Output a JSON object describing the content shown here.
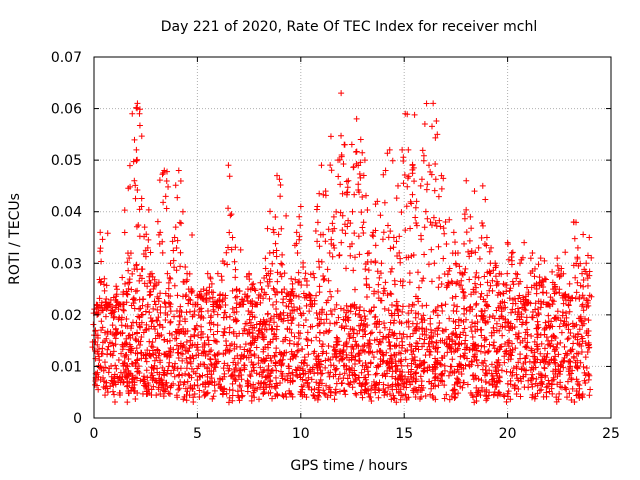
{
  "chart_data": {
    "type": "scatter",
    "title": "Day 221 of 2020, Rate Of TEC Index for receiver mchl",
    "xlabel": "GPS time / hours",
    "ylabel": "ROTI / TECUs",
    "xlim": [
      0,
      25
    ],
    "ylim": [
      0,
      0.07
    ],
    "xticks": [
      0,
      5,
      10,
      15,
      20,
      25
    ],
    "xtick_labels": [
      "0",
      "5",
      "10",
      "15",
      "20",
      "25"
    ],
    "yticks": [
      0,
      0.01,
      0.02,
      0.03,
      0.04,
      0.05,
      0.06,
      0.07
    ],
    "ytick_labels": [
      "0",
      "0.01",
      "0.02",
      "0.03",
      "0.04",
      "0.05",
      "0.06",
      "0.07"
    ],
    "grid": true,
    "marker": "plus",
    "series": [
      {
        "name": "ROTI",
        "color": "#ff0000",
        "x": [
          0.05,
          0.15,
          0.3,
          0.5,
          0.7,
          0.9,
          1.1,
          1.3,
          1.5,
          1.7,
          1.85,
          1.95,
          2.05,
          2.1,
          2.2,
          2.3,
          2.45,
          2.6,
          2.8,
          3.0,
          3.2,
          3.4,
          3.55,
          3.7,
          3.9,
          4.1,
          4.3,
          4.5,
          4.7,
          4.9,
          5.1,
          5.3,
          5.5,
          5.7,
          5.9,
          6.1,
          6.3,
          6.5,
          6.7,
          6.9,
          7.1,
          7.3,
          7.5,
          7.7,
          7.9,
          8.1,
          8.3,
          8.5,
          8.7,
          8.85,
          9.0,
          9.2,
          9.4,
          9.6,
          9.8,
          10.0,
          10.2,
          10.4,
          10.6,
          10.8,
          11.0,
          11.2,
          11.4,
          11.6,
          11.8,
          11.95,
          12.1,
          12.3,
          12.5,
          12.7,
          12.9,
          13.1,
          13.3,
          13.5,
          13.7,
          13.9,
          14.1,
          14.3,
          14.5,
          14.7,
          14.9,
          15.05,
          15.2,
          15.4,
          15.6,
          15.8,
          16.0,
          16.2,
          16.4,
          16.6,
          16.8,
          17.0,
          17.2,
          17.4,
          17.6,
          17.8,
          18.0,
          18.2,
          18.4,
          18.6,
          18.8,
          19.0,
          19.2,
          19.4,
          19.6,
          19.8,
          20.0,
          20.2,
          20.4,
          20.6,
          20.8,
          21.0,
          21.2,
          21.4,
          21.6,
          21.8,
          22.0,
          22.2,
          22.4,
          22.6,
          22.8,
          23.0,
          23.2,
          23.4,
          23.6,
          23.8,
          23.95
        ],
        "y": [
          0.013,
          0.02,
          0.036,
          0.027,
          0.022,
          0.018,
          0.024,
          0.022,
          0.026,
          0.031,
          0.059,
          0.046,
          0.052,
          0.061,
          0.059,
          0.041,
          0.037,
          0.033,
          0.028,
          0.026,
          0.036,
          0.048,
          0.028,
          0.03,
          0.035,
          0.048,
          0.04,
          0.028,
          0.025,
          0.022,
          0.024,
          0.025,
          0.028,
          0.026,
          0.022,
          0.024,
          0.03,
          0.049,
          0.035,
          0.025,
          0.022,
          0.024,
          0.028,
          0.026,
          0.022,
          0.025,
          0.029,
          0.032,
          0.036,
          0.047,
          0.043,
          0.025,
          0.024,
          0.026,
          0.036,
          0.041,
          0.027,
          0.024,
          0.028,
          0.041,
          0.049,
          0.044,
          0.032,
          0.039,
          0.05,
          0.063,
          0.053,
          0.046,
          0.04,
          0.058,
          0.054,
          0.05,
          0.032,
          0.036,
          0.042,
          0.03,
          0.048,
          0.052,
          0.035,
          0.045,
          0.052,
          0.059,
          0.052,
          0.049,
          0.042,
          0.045,
          0.057,
          0.049,
          0.061,
          0.055,
          0.047,
          0.038,
          0.029,
          0.036,
          0.032,
          0.028,
          0.046,
          0.039,
          0.044,
          0.033,
          0.045,
          0.035,
          0.033,
          0.03,
          0.028,
          0.026,
          0.034,
          0.032,
          0.028,
          0.03,
          0.034,
          0.024,
          0.032,
          0.026,
          0.031,
          0.027,
          0.022,
          0.025,
          0.031,
          0.029,
          0.024,
          0.026,
          0.038,
          0.033,
          0.028,
          0.03,
          0.035
        ]
      }
    ],
    "baseline_band": {
      "description": "dense cloud of points",
      "typical_min": 0.004,
      "typical_max": 0.022
    }
  }
}
